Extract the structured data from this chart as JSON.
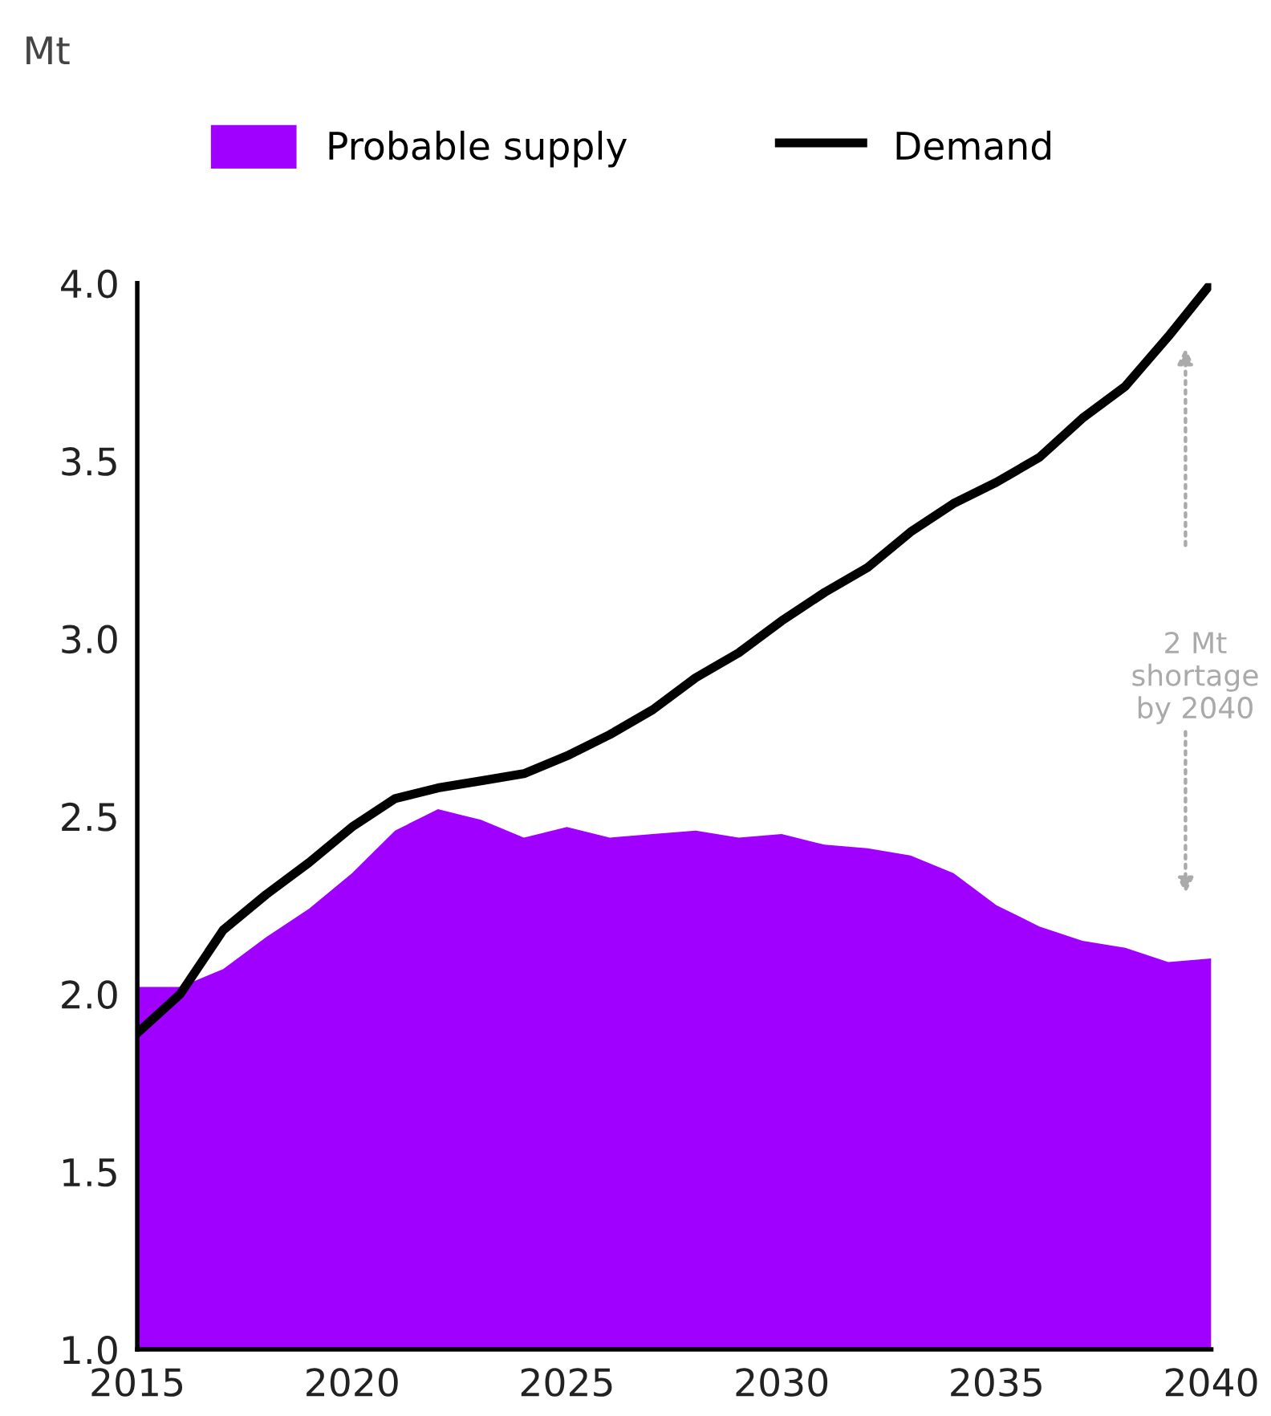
{
  "chart_data": {
    "type": "area",
    "x": [
      2015,
      2016,
      2017,
      2018,
      2019,
      2020,
      2021,
      2022,
      2023,
      2024,
      2025,
      2026,
      2027,
      2028,
      2029,
      2030,
      2031,
      2032,
      2033,
      2034,
      2035,
      2036,
      2037,
      2038,
      2039,
      2040
    ],
    "series": [
      {
        "name": "Probable supply",
        "color": "#a000ff",
        "values": [
          2.02,
          2.02,
          2.07,
          2.16,
          2.24,
          2.34,
          2.46,
          2.52,
          2.49,
          2.44,
          2.47,
          2.44,
          2.45,
          2.46,
          2.44,
          2.45,
          2.42,
          2.41,
          2.39,
          2.34,
          2.25,
          2.19,
          2.15,
          2.13,
          2.09,
          2.1
        ]
      },
      {
        "name": "Demand",
        "type": "line",
        "color": "#000000",
        "values": [
          1.89,
          2.0,
          2.18,
          2.28,
          2.37,
          2.47,
          2.55,
          2.58,
          2.6,
          2.62,
          2.67,
          2.73,
          2.8,
          2.89,
          2.96,
          3.05,
          3.13,
          3.2,
          3.3,
          3.38,
          3.44,
          3.51,
          3.62,
          3.71,
          3.85,
          4.0
        ]
      }
    ],
    "xlim": [
      2015,
      2040
    ],
    "xticks": [
      2015,
      2020,
      2025,
      2030,
      2035,
      2040
    ],
    "ylim": [
      1.0,
      4.0
    ],
    "yticks": [
      {
        "value": 1.0,
        "label": "1.0"
      },
      {
        "value": 1.5,
        "label": "1.5"
      },
      {
        "value": 2.0,
        "label": "2.0"
      },
      {
        "value": 2.5,
        "label": "2.5"
      },
      {
        "value": 3.0,
        "label": "3.0"
      },
      {
        "value": 3.5,
        "label": "3.5"
      },
      {
        "value": 4.0,
        "label": "4.0"
      }
    ],
    "annotations": [
      "Mt",
      "2 Mt\nshortage\nby 2040"
    ],
    "legend": "top",
    "grid": false
  }
}
